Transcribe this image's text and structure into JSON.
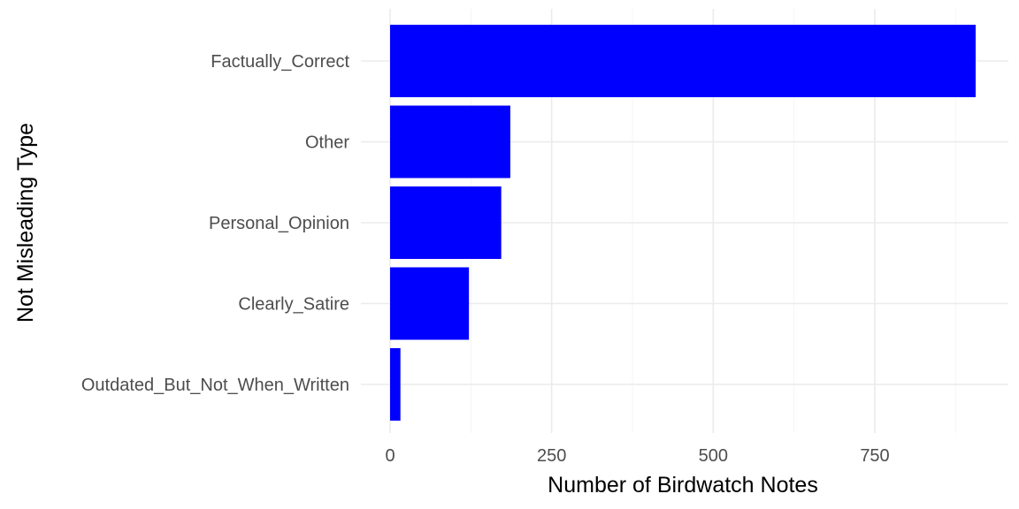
{
  "chart_data": {
    "type": "bar",
    "orientation": "horizontal",
    "categories": [
      "Factually_Correct",
      "Other",
      "Personal_Opinion",
      "Clearly_Satire",
      "Outdated_But_Not_When_Written"
    ],
    "values": [
      906,
      186,
      172,
      122,
      16
    ],
    "xlabel": "Number of Birdwatch Notes",
    "ylabel": "Not Misleading Type",
    "xlim": [
      0,
      950
    ],
    "x_ticks": [
      0,
      250,
      500,
      750
    ],
    "x_tick_labels": [
      "0",
      "250",
      "500",
      "750"
    ],
    "bar_color": "#0000ff",
    "grid": true,
    "theme": "minimal"
  }
}
